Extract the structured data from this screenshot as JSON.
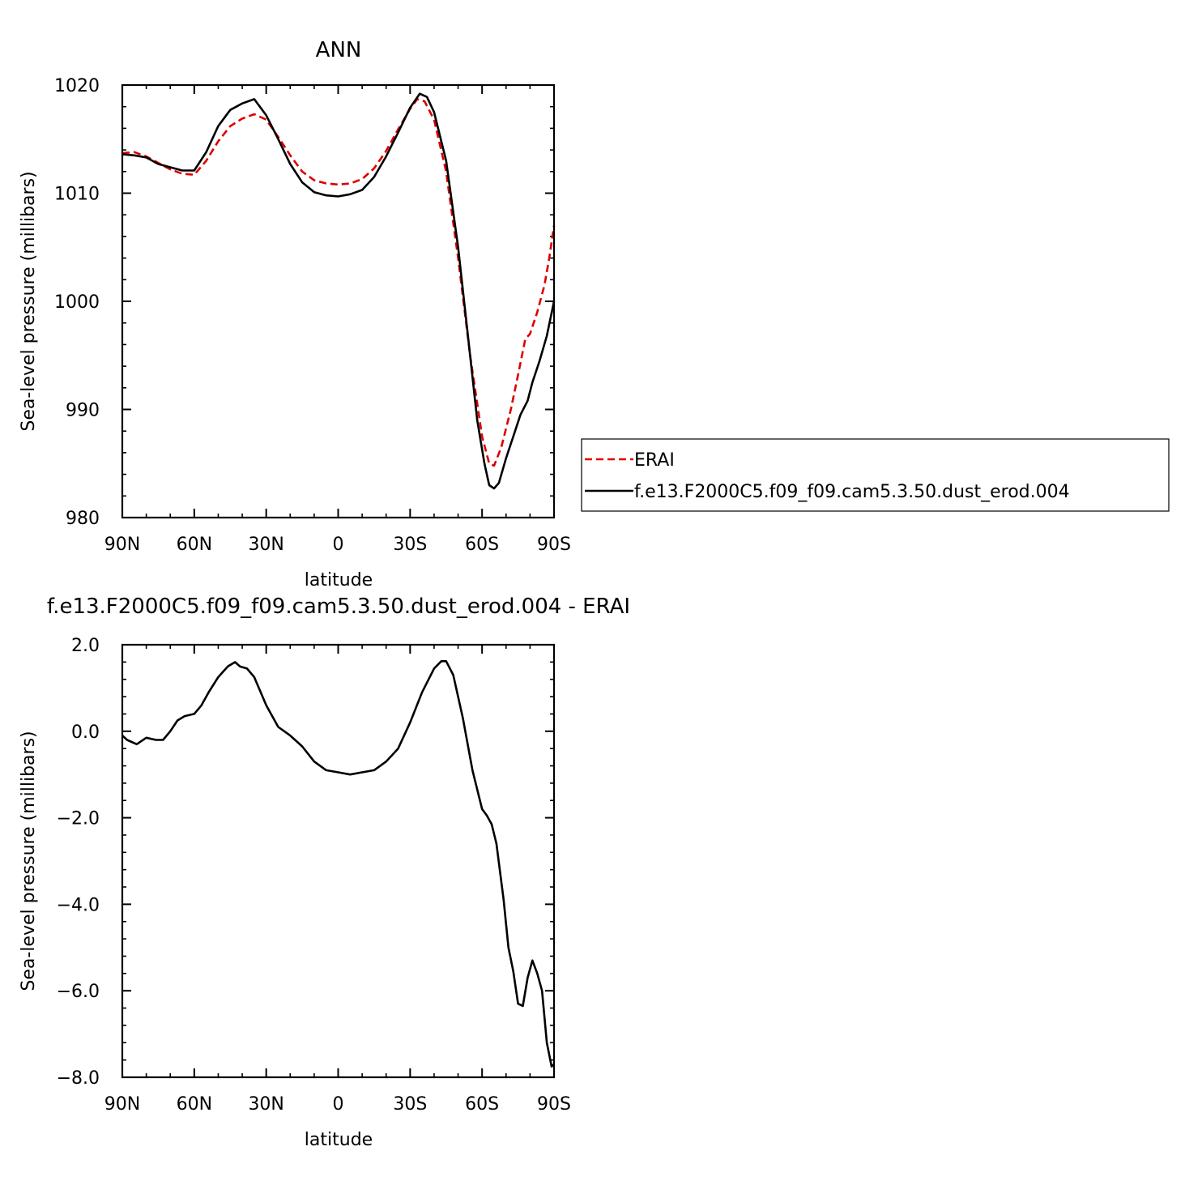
{
  "chart_data": [
    {
      "type": "line",
      "title": "ANN",
      "xlabel": "latitude",
      "ylabel": "Sea-level pressure (millibars)",
      "xlim": [
        90,
        -90
      ],
      "ylim": [
        980,
        1020
      ],
      "x_ticks": [
        90,
        60,
        30,
        0,
        -30,
        -60,
        -90
      ],
      "x_tick_labels": [
        "90N",
        "60N",
        "30N",
        "0",
        "30S",
        "60S",
        "90S"
      ],
      "y_ticks": [
        980,
        990,
        1000,
        1010,
        1020
      ],
      "y_tick_labels": [
        "980",
        "990",
        "1000",
        "1010",
        "1020"
      ],
      "grid": false,
      "legend": "right",
      "series": [
        {
          "name": "ERAI",
          "color": "#dd0000",
          "dash": "dashed",
          "points": [
            [
              90,
              1013.7
            ],
            [
              85,
              1013.8
            ],
            [
              80,
              1013.4
            ],
            [
              75,
              1012.8
            ],
            [
              70,
              1012.2
            ],
            [
              65,
              1011.8
            ],
            [
              60,
              1011.7
            ],
            [
              55,
              1013.0
            ],
            [
              50,
              1014.8
            ],
            [
              45,
              1016.2
            ],
            [
              40,
              1016.9
            ],
            [
              35,
              1017.3
            ],
            [
              30,
              1016.8
            ],
            [
              25,
              1015.2
            ],
            [
              20,
              1013.5
            ],
            [
              15,
              1012.0
            ],
            [
              10,
              1011.2
            ],
            [
              5,
              1010.9
            ],
            [
              0,
              1010.8
            ],
            [
              -5,
              1010.9
            ],
            [
              -10,
              1011.3
            ],
            [
              -15,
              1012.3
            ],
            [
              -20,
              1013.9
            ],
            [
              -25,
              1015.9
            ],
            [
              -30,
              1017.8
            ],
            [
              -33,
              1018.7
            ],
            [
              -36,
              1018.5
            ],
            [
              -40,
              1016.8
            ],
            [
              -45,
              1012.0
            ],
            [
              -50,
              1004.0
            ],
            [
              -55,
              995.0
            ],
            [
              -60,
              987.5
            ],
            [
              -63,
              985.0
            ],
            [
              -65,
              984.8
            ],
            [
              -68,
              986.5
            ],
            [
              -72,
              990.0
            ],
            [
              -75,
              993.2
            ],
            [
              -78,
              996.5
            ],
            [
              -80,
              997.0
            ],
            [
              -83,
              999.0
            ],
            [
              -86,
              1001.5
            ],
            [
              -88,
              1004.0
            ],
            [
              -90,
              1007.0
            ]
          ]
        },
        {
          "name": "f.e13.F2000C5.f09_f09.cam5.3.50.dust_erod.004",
          "color": "#000000",
          "dash": "solid",
          "points": [
            [
              90,
              1013.6
            ],
            [
              85,
              1013.5
            ],
            [
              80,
              1013.3
            ],
            [
              75,
              1012.7
            ],
            [
              70,
              1012.4
            ],
            [
              65,
              1012.1
            ],
            [
              60,
              1012.1
            ],
            [
              55,
              1013.8
            ],
            [
              50,
              1016.2
            ],
            [
              45,
              1017.7
            ],
            [
              40,
              1018.3
            ],
            [
              35,
              1018.7
            ],
            [
              30,
              1017.2
            ],
            [
              25,
              1015.0
            ],
            [
              20,
              1012.7
            ],
            [
              15,
              1011.0
            ],
            [
              10,
              1010.1
            ],
            [
              5,
              1009.8
            ],
            [
              0,
              1009.7
            ],
            [
              -5,
              1009.9
            ],
            [
              -10,
              1010.3
            ],
            [
              -15,
              1011.5
            ],
            [
              -20,
              1013.4
            ],
            [
              -25,
              1015.6
            ],
            [
              -30,
              1017.9
            ],
            [
              -34,
              1019.2
            ],
            [
              -37,
              1018.9
            ],
            [
              -40,
              1017.5
            ],
            [
              -45,
              1013.0
            ],
            [
              -50,
              1005.0
            ],
            [
              -55,
              995.0
            ],
            [
              -58,
              989.0
            ],
            [
              -61,
              985.0
            ],
            [
              -63,
              983.0
            ],
            [
              -65,
              982.7
            ],
            [
              -67,
              983.2
            ],
            [
              -70,
              985.5
            ],
            [
              -73,
              987.5
            ],
            [
              -76,
              989.5
            ],
            [
              -79,
              990.8
            ],
            [
              -81,
              992.5
            ],
            [
              -84,
              994.5
            ],
            [
              -87,
              996.8
            ],
            [
              -90,
              1000.0
            ]
          ]
        }
      ]
    },
    {
      "type": "line",
      "title": "f.e13.F2000C5.f09_f09.cam5.3.50.dust_erod.004 - ERAI",
      "xlabel": "latitude",
      "ylabel": "Sea-level pressure (millibars)",
      "xlim": [
        90,
        -90
      ],
      "ylim": [
        -8,
        2
      ],
      "x_ticks": [
        90,
        60,
        30,
        0,
        -30,
        -60,
        -90
      ],
      "x_tick_labels": [
        "90N",
        "60N",
        "30N",
        "0",
        "30S",
        "60S",
        "90S"
      ],
      "y_ticks": [
        -8,
        -6,
        -4,
        -2,
        0,
        2
      ],
      "y_tick_labels": [
        "−8.0",
        "−6.0",
        "−4.0",
        "−2.0",
        "0.0",
        "2.0"
      ],
      "grid": false,
      "series": [
        {
          "color": "#000000",
          "dash": "solid",
          "points": [
            [
              90,
              -0.1
            ],
            [
              88,
              -0.2
            ],
            [
              84,
              -0.3
            ],
            [
              80,
              -0.15
            ],
            [
              76,
              -0.2
            ],
            [
              73,
              -0.2
            ],
            [
              70,
              0.0
            ],
            [
              67,
              0.25
            ],
            [
              64,
              0.35
            ],
            [
              60,
              0.4
            ],
            [
              57,
              0.6
            ],
            [
              54,
              0.9
            ],
            [
              50,
              1.25
            ],
            [
              46,
              1.5
            ],
            [
              43,
              1.6
            ],
            [
              41,
              1.5
            ],
            [
              38,
              1.45
            ],
            [
              35,
              1.25
            ],
            [
              30,
              0.6
            ],
            [
              25,
              0.1
            ],
            [
              20,
              -0.1
            ],
            [
              15,
              -0.35
            ],
            [
              10,
              -0.7
            ],
            [
              5,
              -0.9
            ],
            [
              0,
              -0.95
            ],
            [
              -5,
              -1.0
            ],
            [
              -10,
              -0.95
            ],
            [
              -15,
              -0.9
            ],
            [
              -20,
              -0.7
            ],
            [
              -25,
              -0.4
            ],
            [
              -30,
              0.2
            ],
            [
              -35,
              0.9
            ],
            [
              -40,
              1.45
            ],
            [
              -43,
              1.62
            ],
            [
              -45,
              1.62
            ],
            [
              -48,
              1.3
            ],
            [
              -52,
              0.3
            ],
            [
              -56,
              -0.9
            ],
            [
              -60,
              -1.8
            ],
            [
              -62,
              -1.95
            ],
            [
              -64,
              -2.15
            ],
            [
              -66,
              -2.6
            ],
            [
              -69,
              -3.9
            ],
            [
              -71,
              -5.0
            ],
            [
              -73,
              -5.55
            ],
            [
              -75,
              -6.3
            ],
            [
              -77,
              -6.35
            ],
            [
              -79,
              -5.7
            ],
            [
              -81,
              -5.3
            ],
            [
              -83,
              -5.6
            ],
            [
              -85,
              -6.0
            ],
            [
              -87,
              -7.2
            ],
            [
              -89,
              -7.75
            ],
            [
              -90,
              -7.7
            ]
          ]
        }
      ]
    }
  ]
}
